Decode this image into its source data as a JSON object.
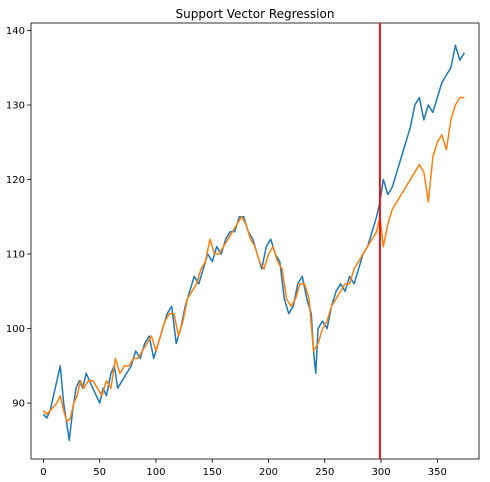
{
  "chart_data": {
    "type": "line",
    "title": "Support Vector Regression",
    "xlabel": "",
    "ylabel": "",
    "xlim": [
      -11,
      387
    ],
    "ylim": [
      82.5,
      141
    ],
    "x_ticks": [
      0,
      50,
      100,
      150,
      200,
      250,
      300,
      350
    ],
    "y_ticks": [
      90,
      100,
      110,
      120,
      130,
      140
    ],
    "grid": false,
    "legend": "none",
    "vertical_line": {
      "x": 299,
      "color": "#e8141b"
    },
    "series": [
      {
        "color": "#1f77b4",
        "points": [
          [
            0,
            88.5
          ],
          [
            3,
            88
          ],
          [
            6,
            89
          ],
          [
            9,
            91
          ],
          [
            12,
            93
          ],
          [
            15,
            95
          ],
          [
            18,
            90
          ],
          [
            21,
            87
          ],
          [
            23,
            85
          ],
          [
            26,
            89
          ],
          [
            29,
            92
          ],
          [
            32,
            93
          ],
          [
            35,
            92
          ],
          [
            38,
            94
          ],
          [
            41,
            93
          ],
          [
            44,
            92
          ],
          [
            47,
            91
          ],
          [
            50,
            90
          ],
          [
            53,
            92
          ],
          [
            56,
            91
          ],
          [
            60,
            94
          ],
          [
            63,
            95
          ],
          [
            66,
            92
          ],
          [
            70,
            93
          ],
          [
            74,
            94
          ],
          [
            78,
            95
          ],
          [
            82,
            97
          ],
          [
            86,
            96
          ],
          [
            90,
            98
          ],
          [
            94,
            99
          ],
          [
            98,
            96
          ],
          [
            102,
            98
          ],
          [
            106,
            100
          ],
          [
            110,
            102
          ],
          [
            114,
            103
          ],
          [
            118,
            98
          ],
          [
            122,
            100
          ],
          [
            126,
            103
          ],
          [
            130,
            105
          ],
          [
            134,
            107
          ],
          [
            138,
            106
          ],
          [
            142,
            108
          ],
          [
            146,
            110
          ],
          [
            150,
            109
          ],
          [
            154,
            111
          ],
          [
            158,
            110
          ],
          [
            162,
            112
          ],
          [
            166,
            113
          ],
          [
            170,
            113
          ],
          [
            174,
            115
          ],
          [
            178,
            115
          ],
          [
            182,
            113
          ],
          [
            186,
            112
          ],
          [
            190,
            110
          ],
          [
            194,
            108
          ],
          [
            198,
            111
          ],
          [
            202,
            112
          ],
          [
            206,
            110
          ],
          [
            210,
            109
          ],
          [
            214,
            104
          ],
          [
            218,
            102
          ],
          [
            222,
            103
          ],
          [
            226,
            106
          ],
          [
            230,
            107
          ],
          [
            234,
            104
          ],
          [
            238,
            102
          ],
          [
            240,
            97
          ],
          [
            242,
            94
          ],
          [
            244,
            100
          ],
          [
            248,
            101
          ],
          [
            252,
            100
          ],
          [
            256,
            103
          ],
          [
            260,
            105
          ],
          [
            264,
            106
          ],
          [
            268,
            105
          ],
          [
            272,
            107
          ],
          [
            276,
            106
          ],
          [
            280,
            108
          ],
          [
            284,
            110
          ],
          [
            288,
            111
          ],
          [
            292,
            113
          ],
          [
            296,
            115
          ],
          [
            299,
            117
          ],
          [
            302,
            120
          ],
          [
            306,
            118
          ],
          [
            310,
            119
          ],
          [
            314,
            121
          ],
          [
            318,
            123
          ],
          [
            322,
            125
          ],
          [
            326,
            127
          ],
          [
            330,
            130
          ],
          [
            334,
            131
          ],
          [
            338,
            128
          ],
          [
            342,
            130
          ],
          [
            346,
            129
          ],
          [
            350,
            131
          ],
          [
            354,
            133
          ],
          [
            358,
            134
          ],
          [
            362,
            135
          ],
          [
            366,
            138
          ],
          [
            370,
            136
          ],
          [
            374,
            137
          ]
        ]
      },
      {
        "color": "#ff7f0e",
        "points": [
          [
            0,
            89
          ],
          [
            3,
            88.5
          ],
          [
            6,
            89
          ],
          [
            9,
            89.5
          ],
          [
            12,
            90
          ],
          [
            15,
            91
          ],
          [
            18,
            89
          ],
          [
            21,
            87.5
          ],
          [
            24,
            88
          ],
          [
            27,
            90
          ],
          [
            30,
            91
          ],
          [
            33,
            93
          ],
          [
            36,
            92
          ],
          [
            40,
            93
          ],
          [
            44,
            93
          ],
          [
            48,
            92
          ],
          [
            52,
            91
          ],
          [
            56,
            93
          ],
          [
            60,
            92
          ],
          [
            64,
            96
          ],
          [
            68,
            94
          ],
          [
            72,
            95
          ],
          [
            76,
            95
          ],
          [
            80,
            96
          ],
          [
            84,
            96
          ],
          [
            88,
            97
          ],
          [
            92,
            98
          ],
          [
            96,
            99
          ],
          [
            100,
            97
          ],
          [
            104,
            99
          ],
          [
            108,
            101
          ],
          [
            112,
            102
          ],
          [
            116,
            102
          ],
          [
            120,
            99
          ],
          [
            124,
            101
          ],
          [
            128,
            104
          ],
          [
            132,
            105
          ],
          [
            136,
            106
          ],
          [
            140,
            108
          ],
          [
            144,
            109
          ],
          [
            148,
            112
          ],
          [
            152,
            110
          ],
          [
            156,
            110
          ],
          [
            160,
            111
          ],
          [
            164,
            112
          ],
          [
            168,
            113
          ],
          [
            172,
            114
          ],
          [
            176,
            115
          ],
          [
            180,
            114
          ],
          [
            184,
            112
          ],
          [
            188,
            111
          ],
          [
            192,
            109
          ],
          [
            196,
            108
          ],
          [
            200,
            110
          ],
          [
            204,
            111
          ],
          [
            208,
            109
          ],
          [
            212,
            108
          ],
          [
            216,
            104
          ],
          [
            220,
            103
          ],
          [
            224,
            104
          ],
          [
            228,
            106
          ],
          [
            232,
            106
          ],
          [
            236,
            104
          ],
          [
            240,
            97
          ],
          [
            244,
            98
          ],
          [
            248,
            100
          ],
          [
            252,
            101
          ],
          [
            256,
            103
          ],
          [
            260,
            104
          ],
          [
            264,
            105
          ],
          [
            268,
            106
          ],
          [
            272,
            106
          ],
          [
            276,
            108
          ],
          [
            280,
            109
          ],
          [
            284,
            110
          ],
          [
            288,
            111
          ],
          [
            292,
            112
          ],
          [
            296,
            113
          ],
          [
            299,
            115
          ],
          [
            302,
            111
          ],
          [
            306,
            114
          ],
          [
            310,
            116
          ],
          [
            314,
            117
          ],
          [
            318,
            118
          ],
          [
            322,
            119
          ],
          [
            326,
            120
          ],
          [
            330,
            121
          ],
          [
            334,
            122
          ],
          [
            338,
            121
          ],
          [
            342,
            117
          ],
          [
            346,
            123
          ],
          [
            350,
            125
          ],
          [
            354,
            126
          ],
          [
            358,
            124
          ],
          [
            362,
            128
          ],
          [
            366,
            130
          ],
          [
            370,
            131
          ],
          [
            374,
            131
          ]
        ]
      }
    ]
  }
}
